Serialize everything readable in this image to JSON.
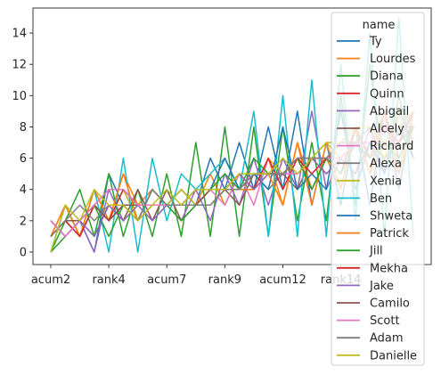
{
  "chart_data": {
    "type": "line",
    "title": "",
    "xlabel": "",
    "ylabel": "",
    "ylim": [
      -0.8,
      15.6
    ],
    "yticks": [
      0,
      2,
      4,
      6,
      8,
      10,
      12,
      14
    ],
    "x_count": 26,
    "x_tick_labels": [
      {
        "index": 0,
        "label": "acum2"
      },
      {
        "index": 4,
        "label": "rank4"
      },
      {
        "index": 8,
        "label": "acum7"
      },
      {
        "index": 12,
        "label": "rank9"
      },
      {
        "index": 16,
        "label": "acum12"
      },
      {
        "index": 20,
        "label": "rank14"
      }
    ],
    "grid": false,
    "legend": {
      "title": "name",
      "placement": "upper right"
    },
    "series": [
      {
        "name": "Ty",
        "color": "#1f77b4",
        "values": [
          2,
          1,
          2,
          0,
          5,
          3,
          3,
          4,
          3,
          4,
          3,
          6,
          4,
          7,
          4,
          8,
          4,
          9,
          3,
          7,
          3,
          8,
          3,
          9,
          4,
          9
        ]
      },
      {
        "name": "Lourdes",
        "color": "#ff7f0e",
        "values": [
          1,
          3,
          1,
          4,
          2,
          5,
          3,
          4,
          3,
          4,
          3,
          5,
          3,
          5,
          4,
          6,
          3,
          7,
          4,
          6,
          4,
          8,
          5,
          7,
          5,
          9
        ]
      },
      {
        "name": "Diana",
        "color": "#2ca02c",
        "values": [
          0,
          2,
          4,
          1,
          5,
          1,
          4,
          1,
          5,
          1,
          7,
          1,
          8,
          1,
          8,
          1,
          8,
          2,
          7,
          2,
          10,
          3,
          12,
          5,
          10,
          6
        ]
      },
      {
        "name": "Quinn",
        "color": "#d62728",
        "values": [
          1,
          2,
          1,
          3,
          2,
          3,
          2,
          3,
          3,
          3,
          3,
          4,
          4,
          4,
          4,
          5,
          5,
          6,
          4,
          6,
          5,
          8,
          6,
          9,
          6,
          8
        ]
      },
      {
        "name": "Abigail",
        "color": "#9467bd",
        "values": [
          2,
          1,
          2,
          0,
          4,
          2,
          3,
          2,
          3,
          2,
          4,
          2,
          5,
          3,
          6,
          3,
          6,
          4,
          9,
          4,
          6,
          5,
          8,
          5,
          9,
          7
        ]
      },
      {
        "name": "Alcely",
        "color": "#8c564b",
        "values": [
          2,
          1,
          2,
          1,
          3,
          2,
          4,
          2,
          4,
          2,
          3,
          3,
          4,
          3,
          5,
          4,
          5,
          4,
          6,
          5,
          6,
          5,
          7,
          6,
          7,
          8
        ]
      },
      {
        "name": "Richard",
        "color": "#e377c2",
        "values": [
          1,
          3,
          1,
          3,
          4,
          4,
          2,
          4,
          3,
          4,
          3,
          4,
          3,
          5,
          3,
          6,
          4,
          6,
          5,
          6,
          5,
          7,
          6,
          8,
          7,
          9
        ]
      },
      {
        "name": "Alexa",
        "color": "#7f7f7f",
        "values": [
          1,
          2,
          2,
          3,
          2,
          4,
          3,
          3,
          3,
          4,
          3,
          3,
          4,
          4,
          5,
          4,
          5,
          5,
          6,
          6,
          6,
          7,
          6,
          7,
          8,
          8
        ]
      },
      {
        "name": "Xenia",
        "color": "#bcbd22",
        "values": [
          0,
          3,
          1,
          4,
          2,
          4,
          2,
          3,
          3,
          4,
          3,
          3,
          4,
          5,
          4,
          6,
          5,
          6,
          6,
          7,
          6,
          7,
          8,
          6,
          9,
          8
        ]
      },
      {
        "name": "Ben",
        "color": "#17becf",
        "values": [
          0,
          3,
          1,
          4,
          0,
          6,
          0,
          6,
          2,
          5,
          4,
          5,
          6,
          4,
          9,
          1,
          10,
          1,
          11,
          1,
          12,
          2,
          14,
          1,
          15,
          1
        ]
      },
      {
        "name": "Shweta",
        "color": "#1f77b4",
        "values": [
          1,
          2,
          1,
          3,
          2,
          3,
          3,
          3,
          3,
          3,
          4,
          4,
          6,
          4,
          5,
          4,
          8,
          4,
          5,
          4,
          9,
          4,
          7,
          5,
          8,
          6
        ]
      },
      {
        "name": "Patrick",
        "color": "#ff7f0e",
        "values": [
          1,
          3,
          1,
          4,
          2,
          5,
          2,
          4,
          3,
          3,
          3,
          4,
          4,
          4,
          4,
          5,
          3,
          7,
          3,
          7,
          4,
          8,
          5,
          9,
          5,
          8
        ]
      },
      {
        "name": "Jill",
        "color": "#2ca02c",
        "values": [
          0,
          1,
          2,
          3,
          1,
          3,
          2,
          4,
          3,
          2,
          3,
          4,
          5,
          4,
          6,
          5,
          5,
          6,
          4,
          6,
          5,
          7,
          6,
          7,
          6,
          8
        ]
      },
      {
        "name": "Mekha",
        "color": "#d62728",
        "values": [
          1,
          2,
          1,
          3,
          2,
          4,
          3,
          3,
          3,
          3,
          4,
          4,
          4,
          5,
          4,
          6,
          4,
          6,
          5,
          6,
          6,
          7,
          7,
          8,
          7,
          9
        ]
      },
      {
        "name": "Jake",
        "color": "#9467bd",
        "values": [
          2,
          1,
          2,
          1,
          3,
          2,
          3,
          2,
          3,
          3,
          3,
          4,
          4,
          5,
          4,
          5,
          5,
          6,
          6,
          5,
          6,
          7,
          7,
          7,
          8,
          8
        ]
      },
      {
        "name": "Camilo",
        "color": "#8c564b",
        "values": [
          1,
          2,
          2,
          3,
          2,
          3,
          3,
          3,
          3,
          3,
          3,
          4,
          4,
          4,
          5,
          5,
          5,
          6,
          6,
          6,
          7,
          7,
          7,
          8,
          8,
          8
        ]
      },
      {
        "name": "Scott",
        "color": "#e377c2",
        "values": [
          2,
          1,
          2,
          3,
          4,
          4,
          3,
          3,
          3,
          3,
          4,
          4,
          4,
          4,
          5,
          5,
          5,
          5,
          6,
          6,
          6,
          7,
          7,
          8,
          8,
          9
        ]
      },
      {
        "name": "Adam",
        "color": "#7f7f7f",
        "values": [
          1,
          2,
          3,
          2,
          3,
          3,
          2,
          4,
          3,
          3,
          3,
          3,
          4,
          4,
          5,
          5,
          5,
          6,
          6,
          6,
          7,
          7,
          8,
          7,
          8,
          9
        ]
      },
      {
        "name": "Danielle",
        "color": "#bcbd22",
        "values": [
          0,
          3,
          2,
          4,
          3,
          3,
          2,
          3,
          4,
          3,
          4,
          4,
          4,
          5,
          5,
          5,
          6,
          5,
          6,
          7,
          7,
          8,
          8,
          7,
          8,
          9
        ]
      }
    ]
  }
}
